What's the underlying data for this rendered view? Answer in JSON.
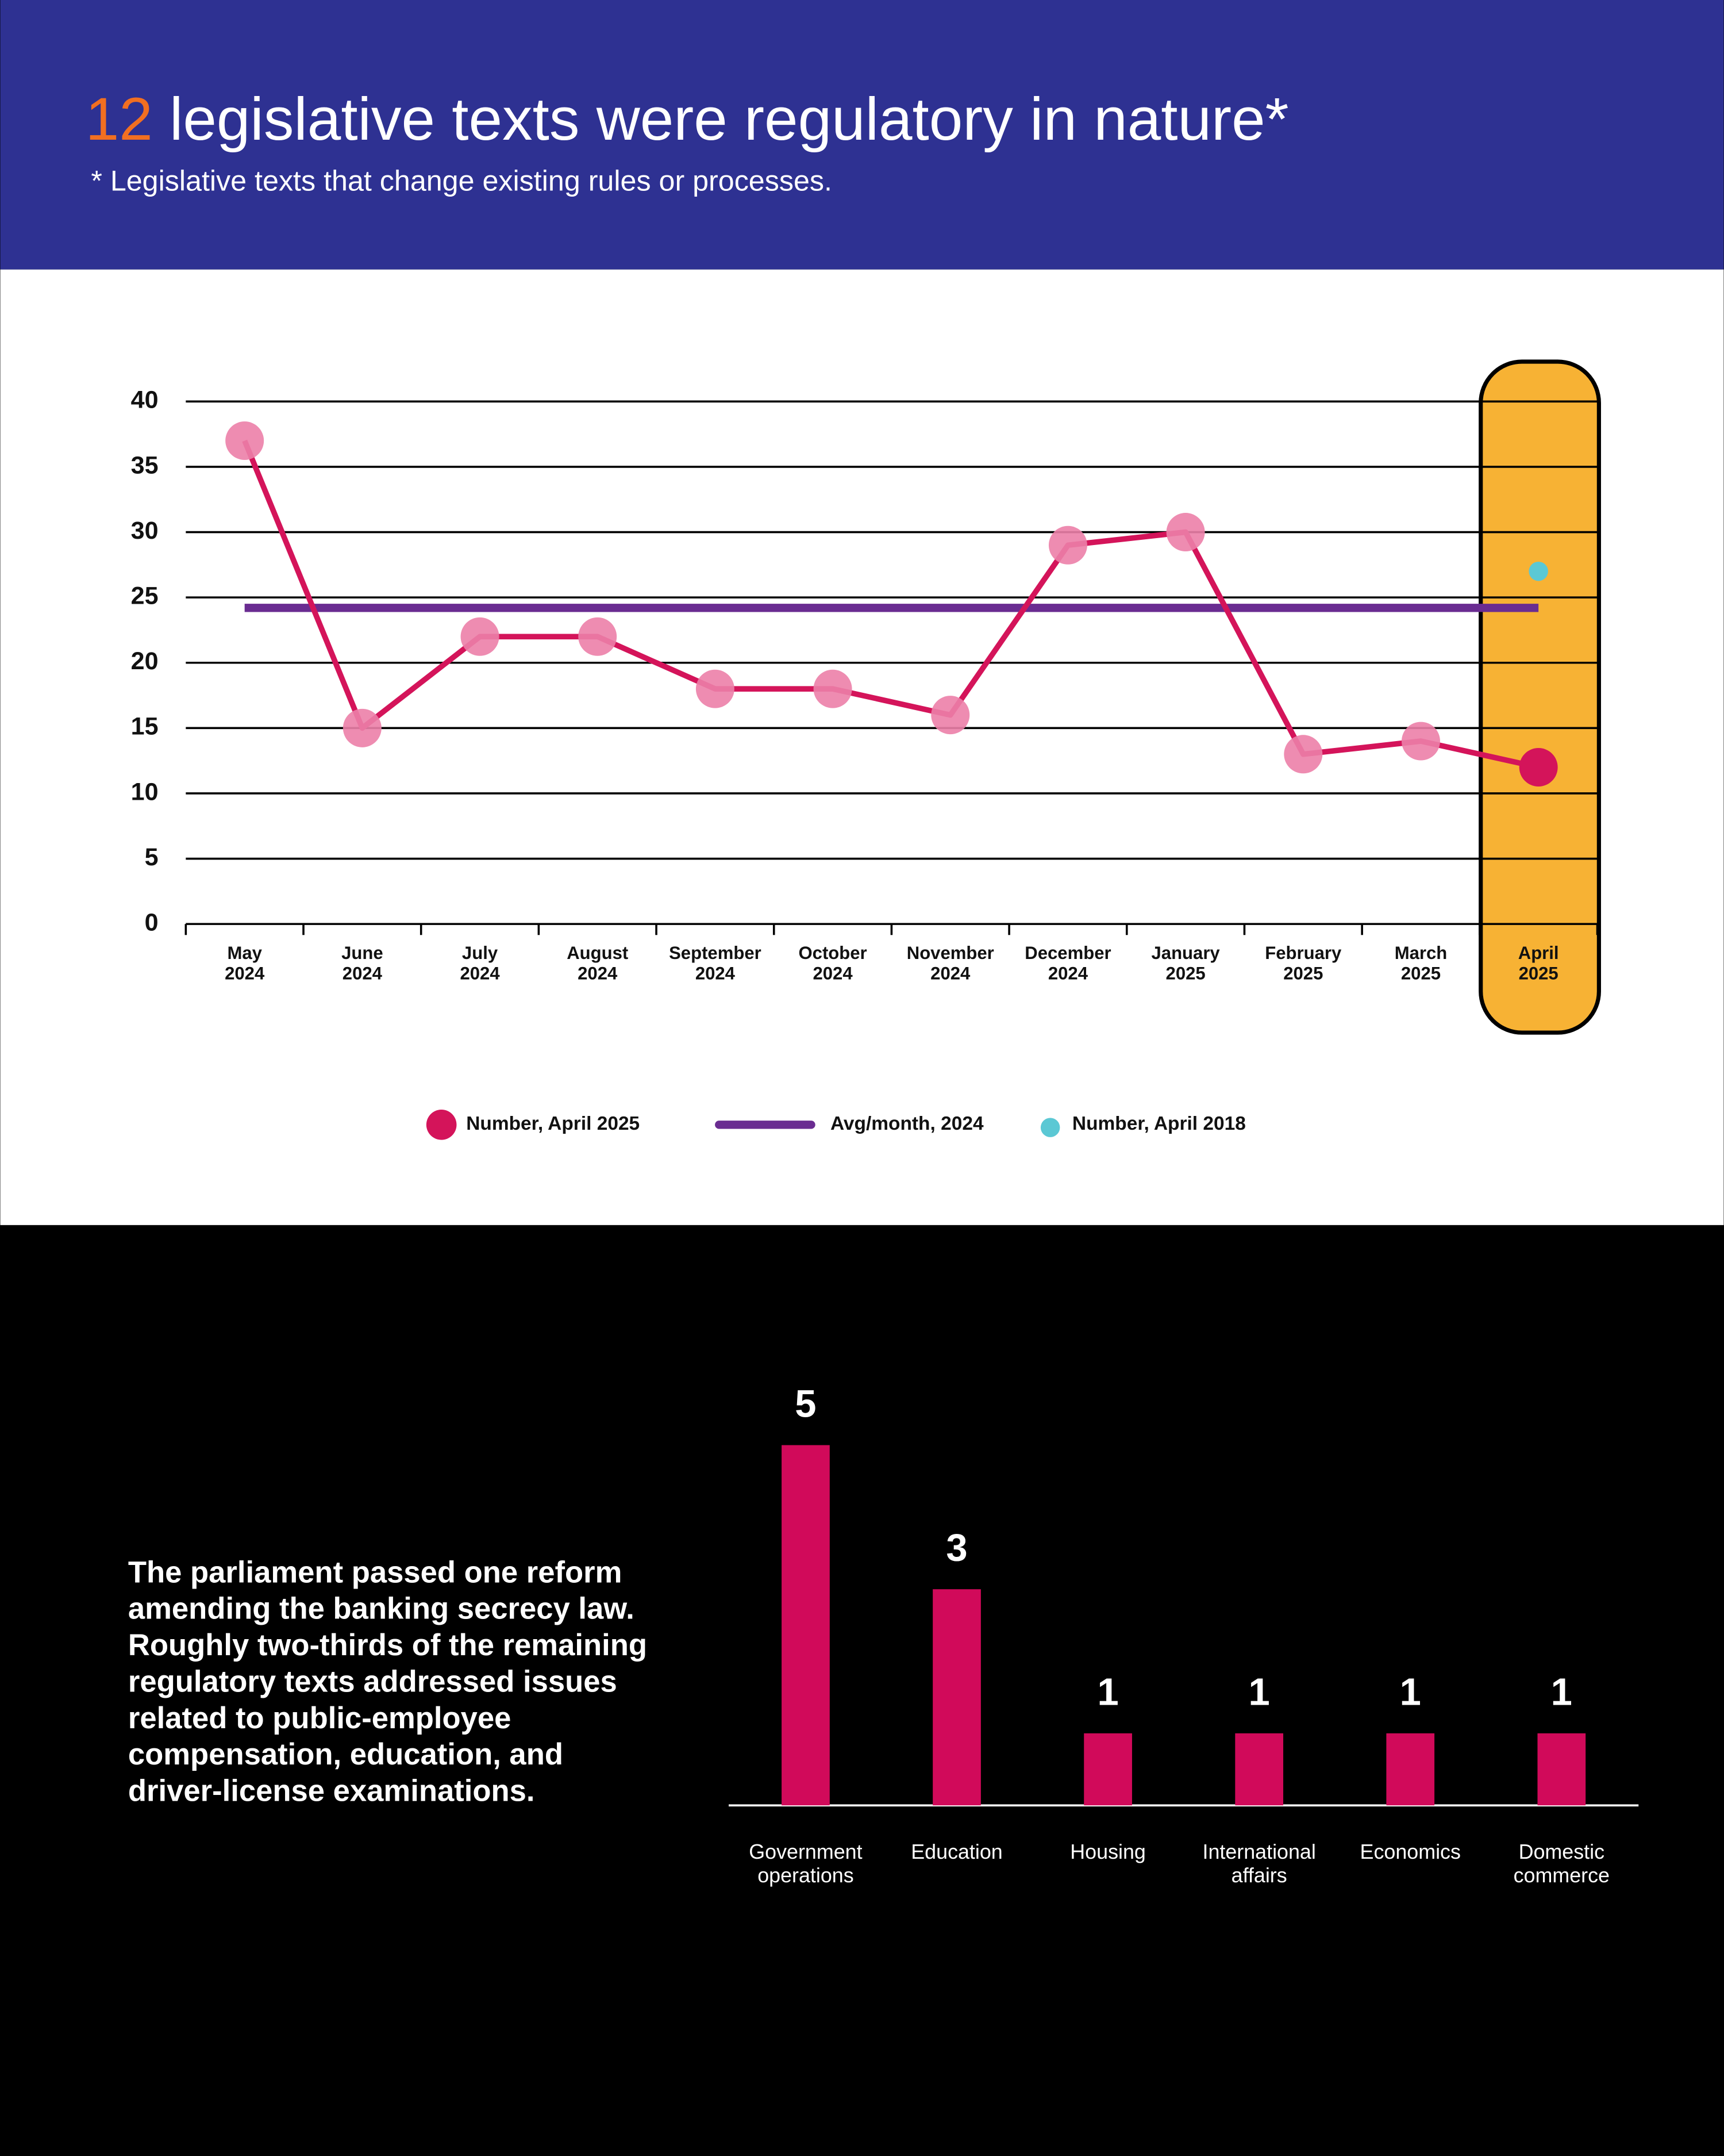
{
  "headline": {
    "number": "12",
    "text": "legislative texts were regulatory in nature*"
  },
  "subtitle": "* Legislative texts that change existing rules or processes.",
  "note_paragraph": [
    "The parliament passed one reform",
    "amending the banking secrecy law.",
    "Roughly two-thirds of the remaining",
    "regulatory texts addressed issues",
    "related to public-employee",
    "compensation, education, and",
    "driver-license examinations."
  ],
  "chart_data": [
    {
      "type": "line",
      "categories": [
        "May 2024",
        "June 2024",
        "July 2024",
        "August 2024",
        "September 2024",
        "October 2024",
        "November 2024",
        "December 2024",
        "January 2025",
        "February 2025",
        "March 2025",
        "April 2025"
      ],
      "series": [
        {
          "name": "Number, April 2025",
          "color": "#d4145a",
          "values": [
            37,
            15,
            22,
            22,
            18,
            18,
            16,
            29,
            30,
            13,
            14,
            12
          ]
        }
      ],
      "average": {
        "name": "Avg/month, 2024",
        "color": "#6a2c91",
        "value": 24.2
      },
      "reference": {
        "name": "Number, April 2018",
        "color": "#5bc8d4",
        "value": 27
      },
      "highlight": "April 2025",
      "ylim": [
        0,
        40
      ],
      "yticks": [
        0,
        5,
        10,
        15,
        20,
        25,
        30,
        35,
        40
      ],
      "grid": true
    },
    {
      "type": "bar",
      "categories": [
        "Government operations",
        "Education",
        "Housing",
        "International affairs",
        "Economics",
        "Domestic commerce"
      ],
      "values": [
        5,
        3,
        1,
        1,
        1,
        1
      ],
      "color": "#d10a5a"
    }
  ]
}
